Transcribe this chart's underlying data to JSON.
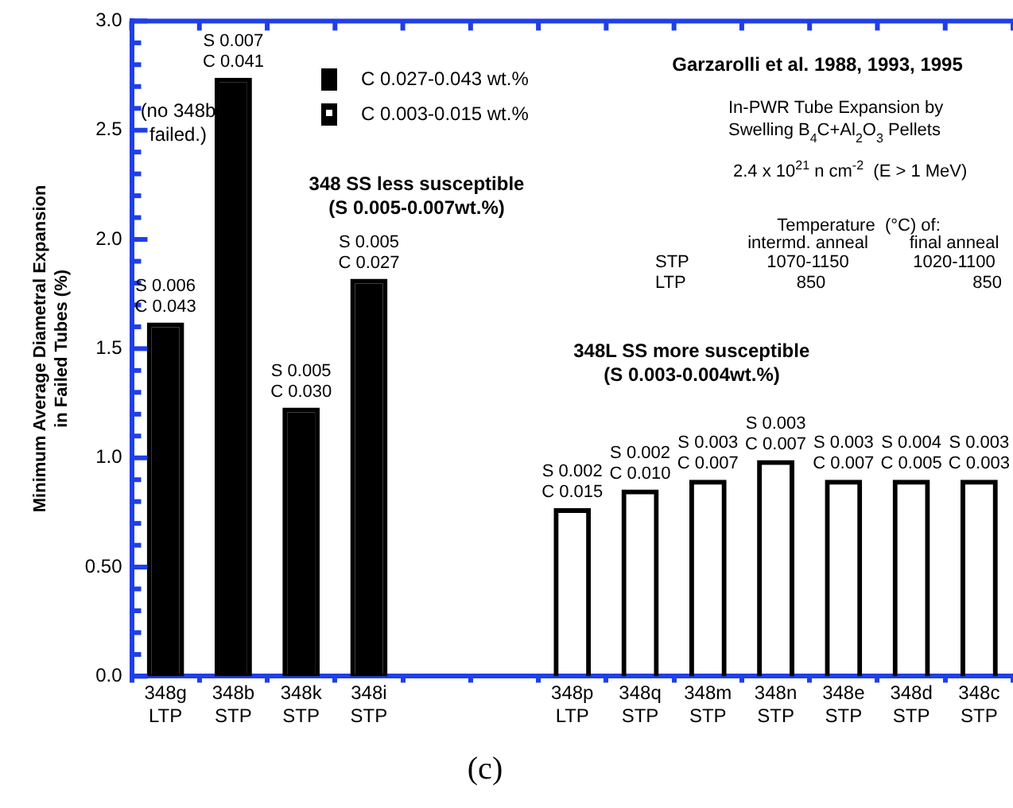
{
  "chart_data": {
    "type": "bar",
    "categories": [
      "348g\nLTP",
      "348b\nSTP",
      "348k\nSTP",
      "348i\nSTP",
      null,
      null,
      "348p\nLTP",
      "348q\nSTP",
      "348m\nSTP",
      "348n\nSTP",
      "348e\nSTP",
      "348d\nSTP",
      "348c\nSTP"
    ],
    "ylabel": "Minimum Average Diametral Expansion\nin Failed Tubes (%)",
    "ylim": [
      0,
      3
    ],
    "yticks": [
      {
        "value": 0,
        "label": "0.0"
      },
      {
        "value": 0.1,
        "label": null
      },
      {
        "value": 0.2,
        "label": null
      },
      {
        "value": 0.3,
        "label": null
      },
      {
        "value": 0.4,
        "label": null
      },
      {
        "value": 0.5,
        "label": "0.50"
      },
      {
        "value": 0.6,
        "label": null
      },
      {
        "value": 0.7,
        "label": null
      },
      {
        "value": 0.8,
        "label": null
      },
      {
        "value": 0.9,
        "label": null
      },
      {
        "value": 1,
        "label": "1.0"
      },
      {
        "value": 1.1,
        "label": null
      },
      {
        "value": 1.2,
        "label": null
      },
      {
        "value": 1.3,
        "label": null
      },
      {
        "value": 1.4,
        "label": null
      },
      {
        "value": 1.5,
        "label": "1.5"
      },
      {
        "value": 1.6,
        "label": null
      },
      {
        "value": 1.7,
        "label": null
      },
      {
        "value": 1.8,
        "label": null
      },
      {
        "value": 1.9,
        "label": null
      },
      {
        "value": 2,
        "label": "2.0"
      },
      {
        "value": 2.1,
        "label": null
      },
      {
        "value": 2.2,
        "label": null
      },
      {
        "value": 2.3,
        "label": null
      },
      {
        "value": 2.4,
        "label": null
      },
      {
        "value": 2.5,
        "label": "2.5"
      },
      {
        "value": 2.6,
        "label": null
      },
      {
        "value": 2.7,
        "label": null
      },
      {
        "value": 2.8,
        "label": null
      },
      {
        "value": 2.9,
        "label": null
      },
      {
        "value": 3,
        "label": "3.0"
      }
    ],
    "legend": "top",
    "series": [
      {
        "name": "C 0.027-0.043 wt.%",
        "color": "#000000",
        "values": [
          1.62,
          2.74,
          1.23,
          1.82,
          null,
          null,
          null,
          null,
          null,
          null,
          null,
          null,
          null
        ],
        "value_labels": [
          "S 0.006\nC 0.043",
          "S 0.007\nC 0.041",
          "S 0.005\nC 0.030",
          "S 0.005\nC 0.027",
          null,
          null,
          null,
          null,
          null,
          null,
          null,
          null,
          null
        ]
      },
      {
        "name": "C 0.003-0.015 wt.%",
        "color": "#000000",
        "values": [
          null,
          null,
          null,
          null,
          null,
          null,
          0.77,
          0.855,
          0.9,
          0.99,
          0.9,
          0.9,
          0.9
        ],
        "value_labels": [
          null,
          null,
          null,
          null,
          null,
          null,
          "S 0.002\nC 0.015",
          "S 0.002\nC 0.010",
          "S 0.003\nC 0.007",
          "S 0.003\nC 0.007",
          "S 0.003\nC 0.007",
          "S 0.004\nC 0.005",
          "S 0.003\nC 0.003"
        ]
      }
    ],
    "annotations": [
      "(no 348b\nfailed.)",
      "348 SS less susceptible\n(S 0.005-0.007wt.%)",
      "348L SS more susceptible\n(S 0.003-0.004wt.%)",
      "Garzarolli et al. 1988, 1993, 1995",
      "In-PWR Tube Expansion by\nSwelling B$_{4}$C+Al$_{2}$O$_{3}$ Pellets",
      "2.4 x 10$^{21}$ n cm$^{-2}$  (E > 1 MeV)",
      "Temperature  (°C) of:",
      "intermd. anneal",
      "final anneal",
      "STP",
      "1070-1150",
      "1020-1100",
      "LTP",
      "850",
      "850",
      "(c)"
    ]
  }
}
